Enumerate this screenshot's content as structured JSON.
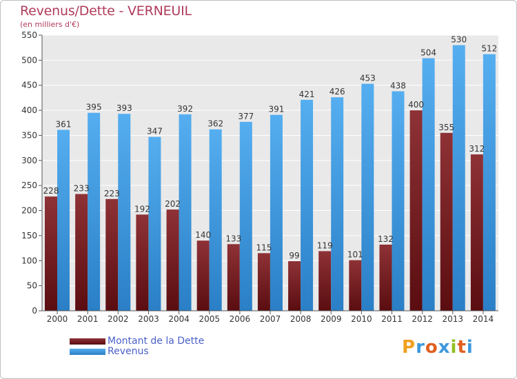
{
  "title": "Revenus/Dette - VERNEUIL",
  "subtitle": "(en milliers d'€)",
  "colors": {
    "dette": "#7a2327",
    "revenus": "#3d98dd",
    "title": "#b03a5a",
    "legend_text": "#4a5fc8"
  },
  "legend": [
    {
      "label": "Montant de la Dette",
      "color": "#7a2327"
    },
    {
      "label": "Revenus",
      "color": "#3d98dd"
    }
  ],
  "logo": {
    "letters": [
      "P",
      "r",
      "o",
      "x",
      "i",
      "t",
      "i"
    ],
    "colors": [
      "#f0a020",
      "#3d98dd",
      "#e06020",
      "#3d98dd",
      "#90c020",
      "#e06020",
      "#3d98dd"
    ]
  },
  "chart_data": {
    "type": "bar",
    "categories": [
      "2000",
      "2001",
      "2002",
      "2003",
      "2004",
      "2005",
      "2006",
      "2007",
      "2008",
      "2009",
      "2010",
      "2011",
      "2012",
      "2013",
      "2014"
    ],
    "series": [
      {
        "name": "Montant de la Dette",
        "values": [
          228,
          233,
          223,
          192,
          202,
          140,
          133,
          115,
          99,
          119,
          101,
          132,
          400,
          355,
          312
        ]
      },
      {
        "name": "Revenus",
        "values": [
          361,
          395,
          393,
          347,
          392,
          362,
          377,
          391,
          421,
          426,
          453,
          438,
          504,
          530,
          512
        ]
      }
    ],
    "ylim": [
      0,
      550
    ],
    "yticks": [
      "0",
      "50",
      "100",
      "150",
      "200",
      "250",
      "300",
      "350",
      "400",
      "450",
      "500",
      "550"
    ],
    "grid": true,
    "legend_position": "bottom-left"
  }
}
